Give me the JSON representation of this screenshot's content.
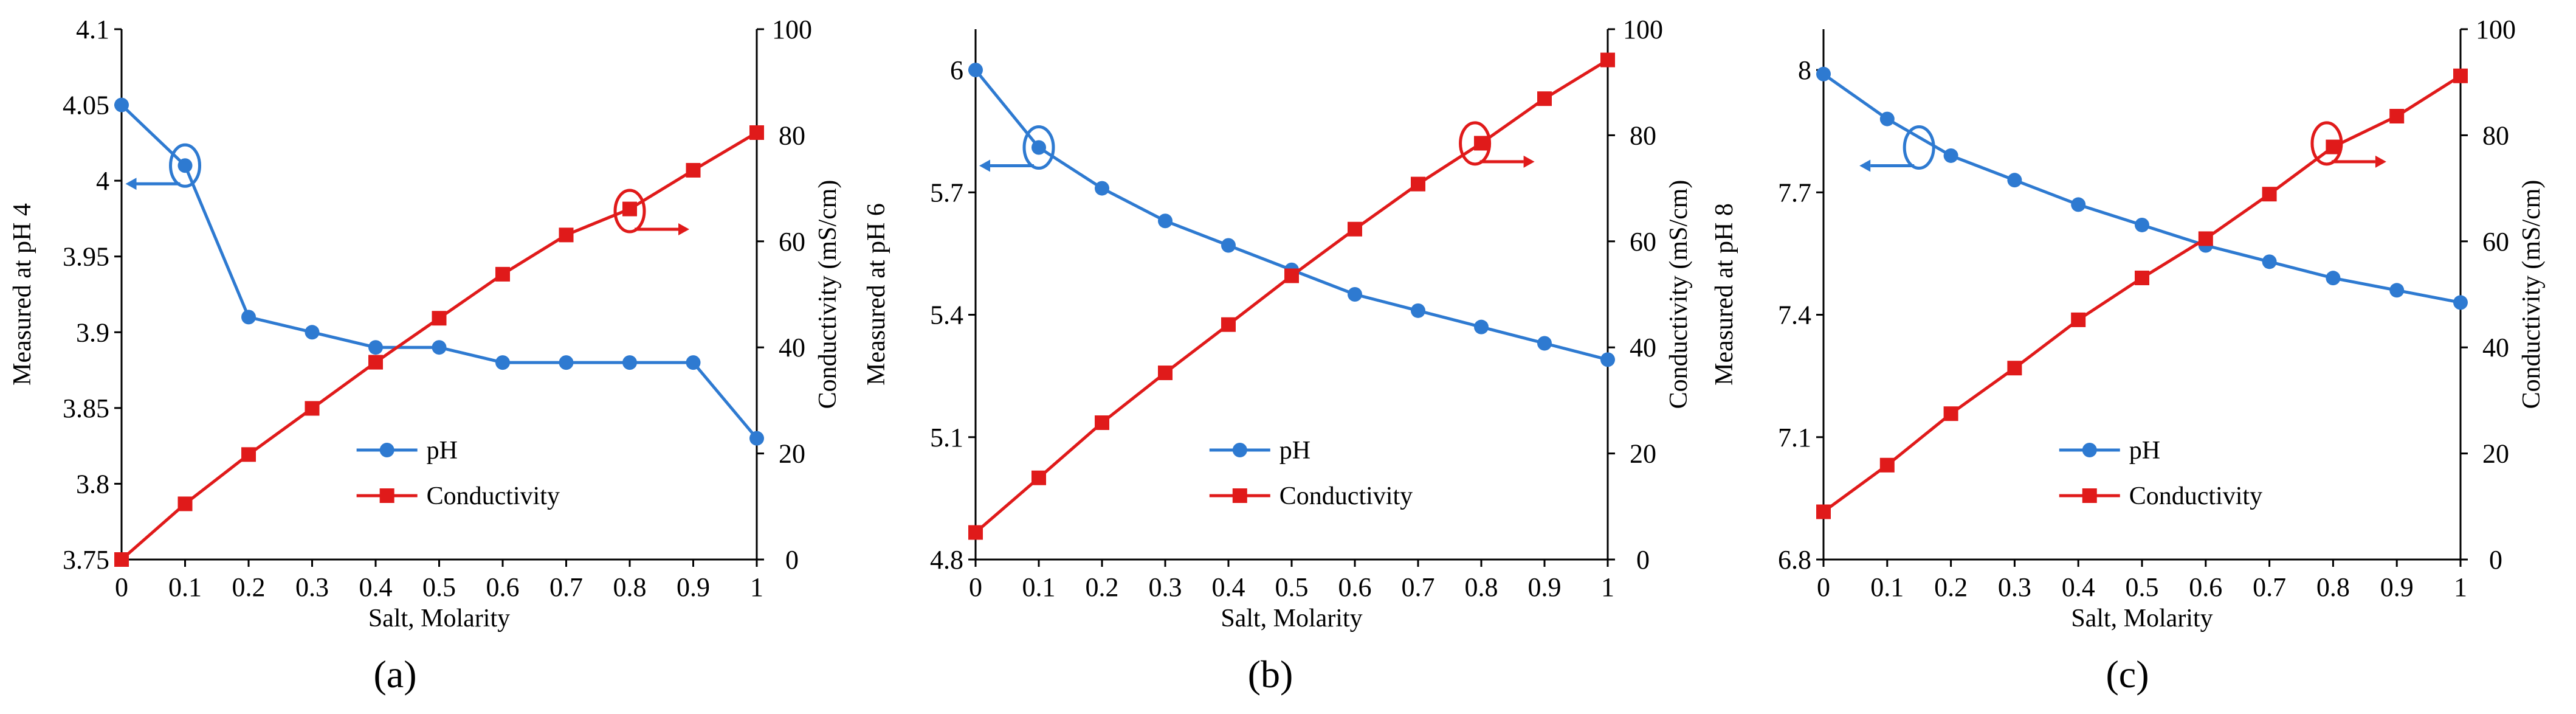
{
  "colors": {
    "ph": "#2e7ad1",
    "conductivity": "#e01a1a",
    "axis": "#000000"
  },
  "chart_data": [
    {
      "type": "line",
      "panel_label": "(a)",
      "xlabel": "Salt, Molarity",
      "ylabel_left": "Measured at pH 4",
      "ylabel_right": "Conductivity (mS/cm)",
      "x": [
        0,
        0.1,
        0.2,
        0.3,
        0.4,
        0.5,
        0.6,
        0.7,
        0.8,
        0.9,
        1
      ],
      "x_ticks": [
        "0",
        "0.1",
        "0.2",
        "0.3",
        "0.4",
        "0.5",
        "0.6",
        "0.7",
        "0.8",
        "0.9",
        "1"
      ],
      "ylim_left": [
        3.75,
        4.1
      ],
      "y_ticks_left": [
        "3.75",
        "3.8",
        "3.85",
        "3.9",
        "3.95",
        "4",
        "4.05",
        "4.1"
      ],
      "ylim_right": [
        0,
        100
      ],
      "y_ticks_right": [
        "0",
        "20",
        "40",
        "60",
        "80",
        "100"
      ],
      "series": [
        {
          "name": "pH",
          "axis": "left",
          "marker": "circle",
          "values": [
            4.05,
            4.01,
            3.91,
            3.9,
            3.89,
            3.89,
            3.88,
            3.88,
            3.88,
            3.88,
            3.83
          ]
        },
        {
          "name": "Conductivity",
          "axis": "right",
          "marker": "square",
          "values": [
            0,
            10.5,
            19.8,
            28.5,
            37.2,
            45.5,
            53.8,
            61.2,
            66.1,
            73.4,
            80.5
          ]
        }
      ],
      "annotations": [
        {
          "series": "pH",
          "x": 0.1,
          "y": 4.01,
          "arrow": "left"
        },
        {
          "series": "Conductivity",
          "x": 0.8,
          "y": 3.98,
          "arrow": "right"
        }
      ]
    },
    {
      "type": "line",
      "panel_label": "(b)",
      "xlabel": "Salt, Molarity",
      "ylabel_left": "Measured at pH 6",
      "ylabel_right": "Conductivity (mS/cm)",
      "x": [
        0,
        0.1,
        0.2,
        0.3,
        0.4,
        0.5,
        0.6,
        0.7,
        0.8,
        0.9,
        1
      ],
      "x_ticks": [
        "0",
        "0.1",
        "0.2",
        "0.3",
        "0.4",
        "0.5",
        "0.6",
        "0.7",
        "0.8",
        "0.9",
        "1"
      ],
      "ylim_left": [
        4.8,
        6.1
      ],
      "y_ticks_left": [
        "4.8",
        "5.1",
        "5.4",
        "5.7",
        "6"
      ],
      "ylim_right": [
        0,
        100
      ],
      "y_ticks_right": [
        "0",
        "20",
        "40",
        "60",
        "80",
        "100"
      ],
      "series": [
        {
          "name": "pH",
          "axis": "left",
          "marker": "circle",
          "values": [
            6.0,
            5.81,
            5.71,
            5.63,
            5.57,
            5.51,
            5.45,
            5.41,
            5.37,
            5.33,
            5.29
          ]
        },
        {
          "name": "Conductivity",
          "axis": "right",
          "marker": "square",
          "values": [
            5.1,
            15.4,
            25.8,
            35.2,
            44.3,
            53.5,
            62.3,
            70.8,
            78.5,
            86.9,
            94.2
          ]
        }
      ],
      "annotations": [
        {
          "series": "pH",
          "x": 0.1,
          "y": 5.81,
          "arrow": "left"
        },
        {
          "series": "Conductivity",
          "x": 0.79,
          "y": 5.82,
          "arrow": "right"
        }
      ]
    },
    {
      "type": "line",
      "panel_label": "(c)",
      "xlabel": "Salt, Molarity",
      "ylabel_left": "Measured at pH 8",
      "ylabel_right": "Conductivity (mS/cm)",
      "x": [
        0,
        0.1,
        0.2,
        0.3,
        0.4,
        0.5,
        0.6,
        0.7,
        0.8,
        0.9,
        1
      ],
      "x_ticks": [
        "0",
        "0.1",
        "0.2",
        "0.3",
        "0.4",
        "0.5",
        "0.6",
        "0.7",
        "0.8",
        "0.9",
        "1"
      ],
      "ylim_left": [
        6.8,
        8.1
      ],
      "y_ticks_left": [
        "6.8",
        "7.1",
        "7.4",
        "7.7",
        "8"
      ],
      "ylim_right": [
        0,
        100
      ],
      "y_ticks_right": [
        "0",
        "20",
        "40",
        "60",
        "80",
        "100"
      ],
      "series": [
        {
          "name": "pH",
          "axis": "left",
          "marker": "circle",
          "values": [
            7.99,
            7.88,
            7.79,
            7.73,
            7.67,
            7.62,
            7.57,
            7.53,
            7.49,
            7.46,
            7.43
          ]
        },
        {
          "name": "Conductivity",
          "axis": "right",
          "marker": "square",
          "values": [
            9.0,
            17.8,
            27.5,
            36.1,
            45.2,
            53.1,
            60.5,
            68.9,
            77.8,
            83.6,
            91.2
          ]
        }
      ],
      "annotations": [
        {
          "series": "pH",
          "x": 0.15,
          "y": 7.81,
          "arrow": "left"
        },
        {
          "series": "Conductivity",
          "x": 0.79,
          "y": 7.82,
          "arrow": "right"
        }
      ]
    }
  ]
}
